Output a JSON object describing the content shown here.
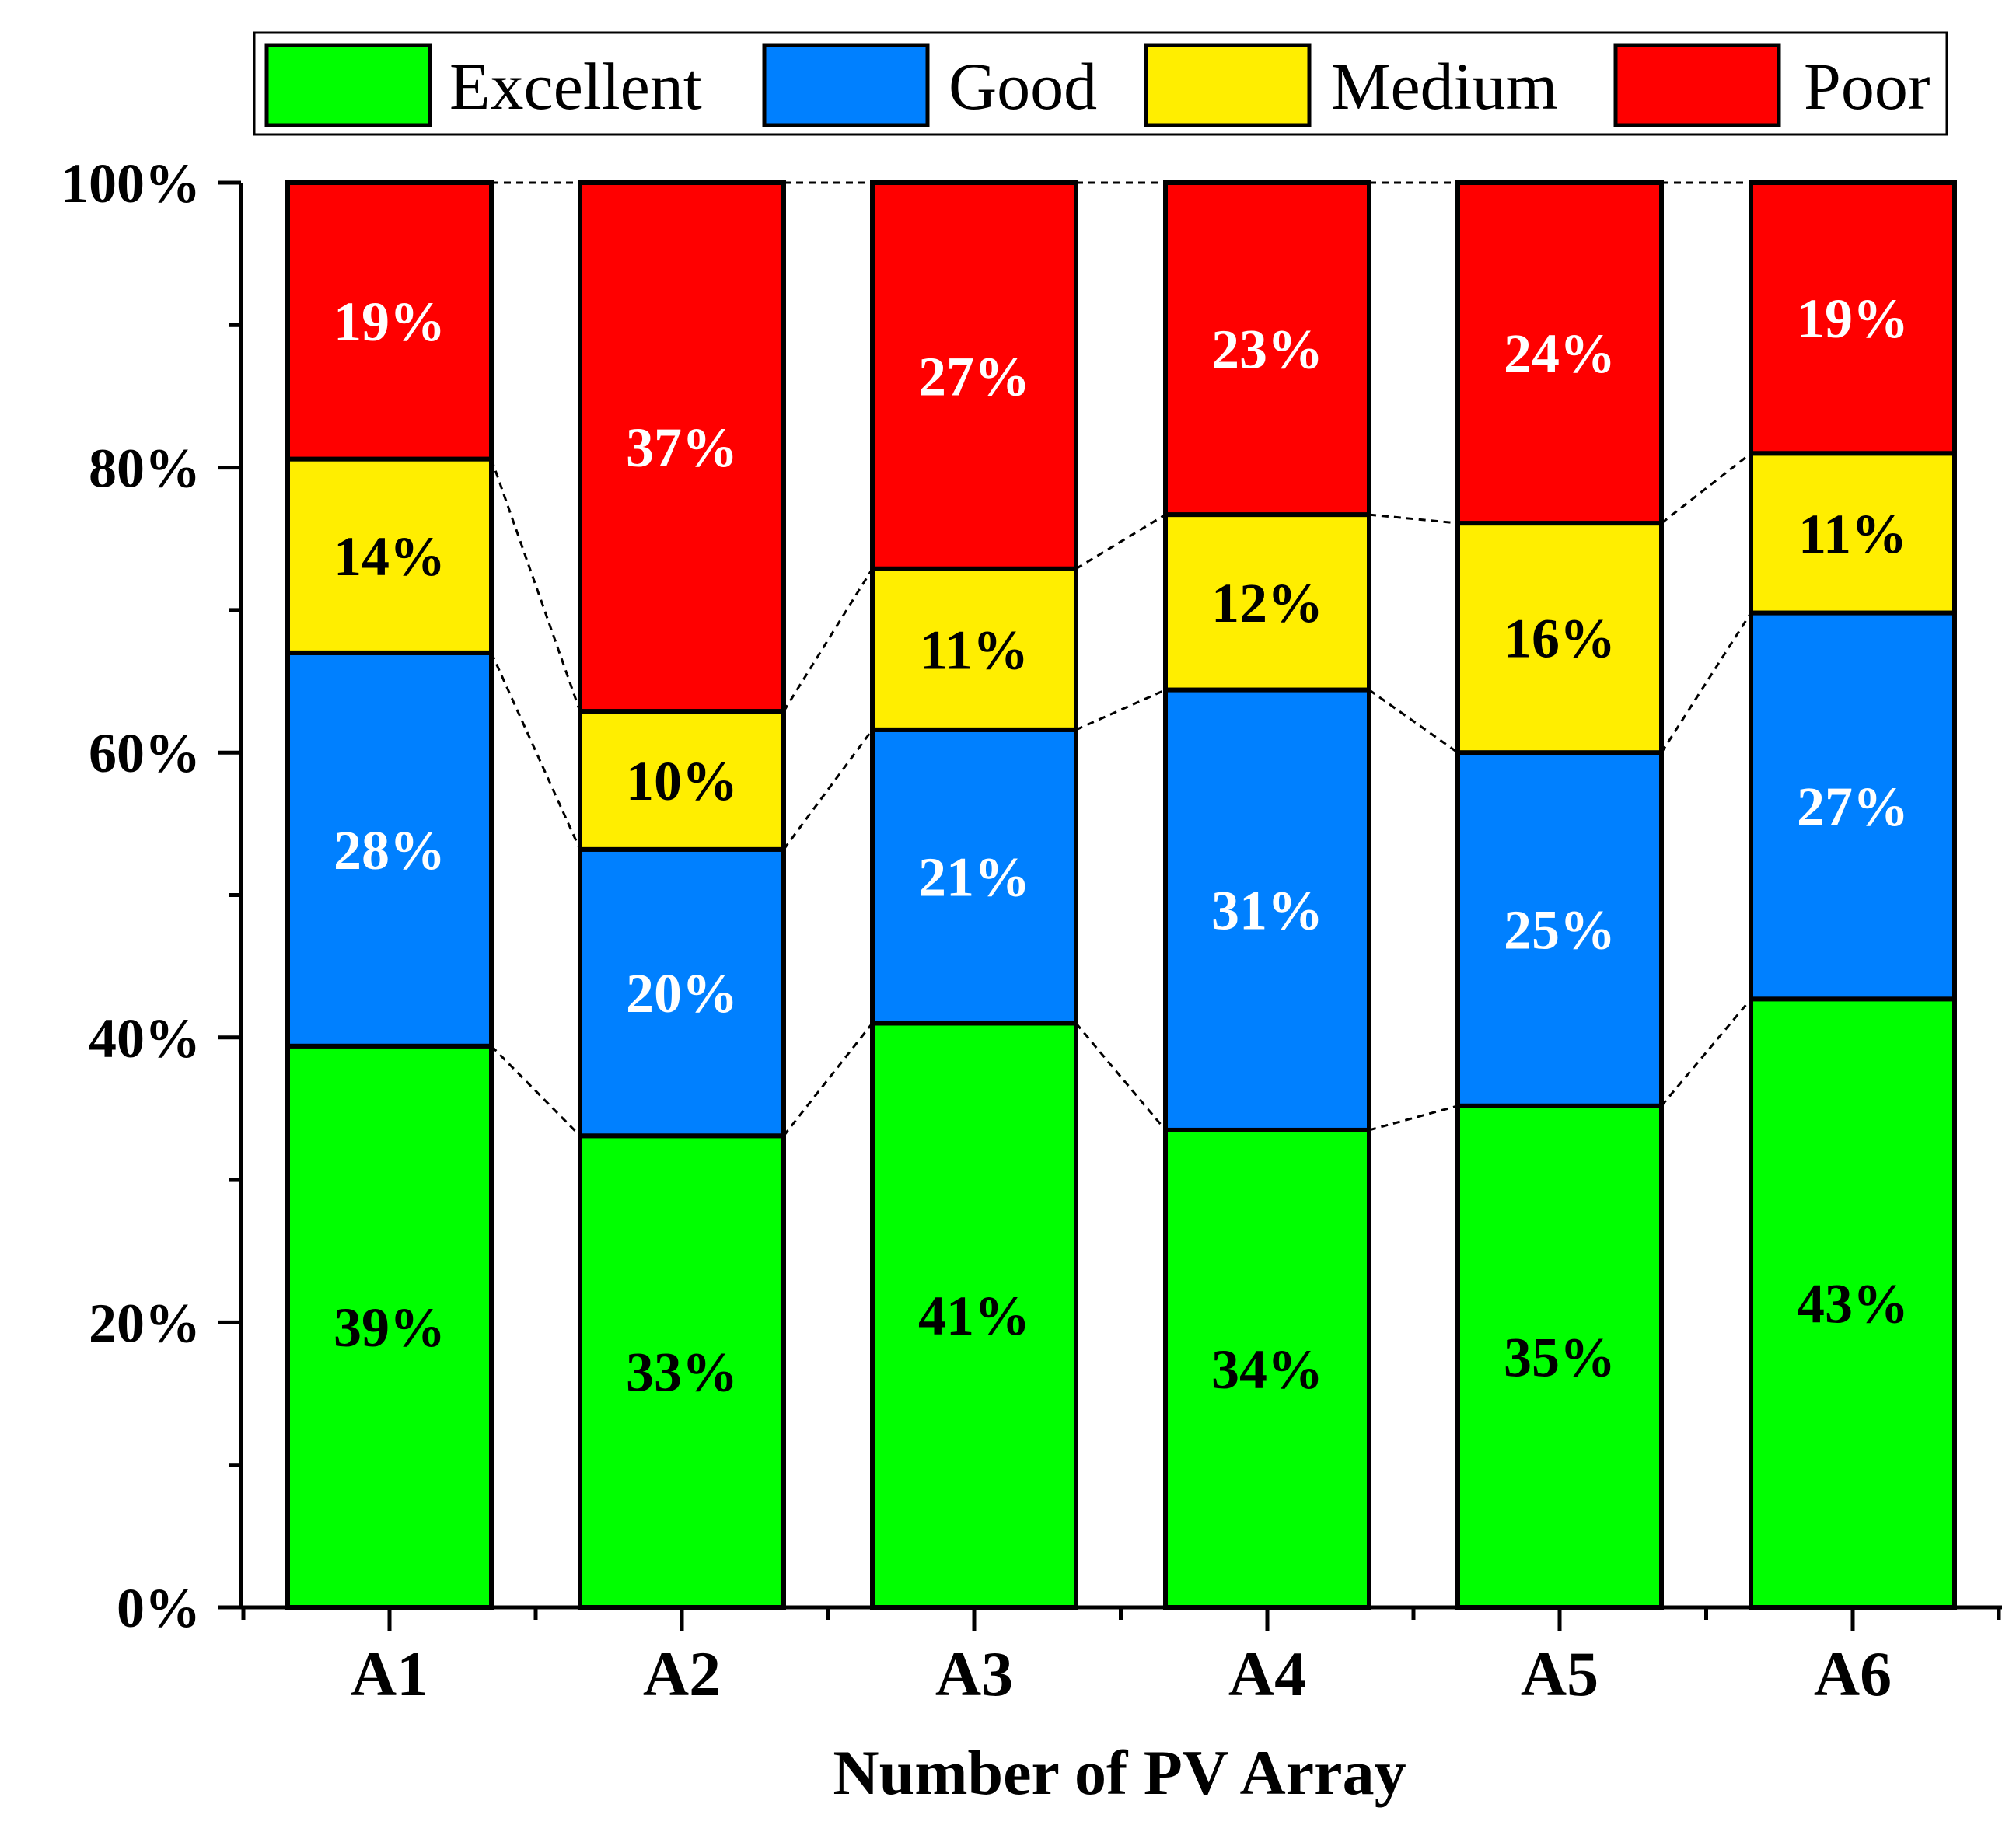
{
  "chart_data": {
    "type": "bar",
    "stacked": true,
    "title": "",
    "xlabel": "Number of PV Array",
    "ylabel": "",
    "ylim": [
      0,
      100
    ],
    "yticks": [
      "0%",
      "20%",
      "40%",
      "60%",
      "80%",
      "100%"
    ],
    "categories": [
      "A1",
      "A2",
      "A3",
      "A4",
      "A5",
      "A6"
    ],
    "legend_position": "top",
    "connector_lines": "dashed",
    "series": [
      {
        "name": "Excellent",
        "color": "#00ff00",
        "label_color": "#000000",
        "values": [
          39.4,
          33.1,
          41.0,
          33.5,
          35.2,
          42.7
        ],
        "labels": [
          "39%",
          "33%",
          "41%",
          "34%",
          "35%",
          "43%"
        ]
      },
      {
        "name": "Good",
        "color": "#0080ff",
        "label_color": "#ffffff",
        "values": [
          27.6,
          20.1,
          20.6,
          30.9,
          24.8,
          27.1
        ],
        "labels": [
          "28%",
          "20%",
          "21%",
          "31%",
          "25%",
          "27%"
        ]
      },
      {
        "name": "Medium",
        "color": "#ffee00",
        "label_color": "#000000",
        "values": [
          13.6,
          9.7,
          11.3,
          12.3,
          16.1,
          11.2
        ],
        "labels": [
          "14%",
          "10%",
          "11%",
          "12%",
          "16%",
          "11%"
        ]
      },
      {
        "name": "Poor",
        "color": "#ff0000",
        "label_color": "#ffffff",
        "values": [
          19.4,
          37.1,
          27.1,
          23.3,
          23.9,
          19.0
        ],
        "labels": [
          "19%",
          "37%",
          "27%",
          "23%",
          "24%",
          "19%"
        ]
      }
    ]
  }
}
